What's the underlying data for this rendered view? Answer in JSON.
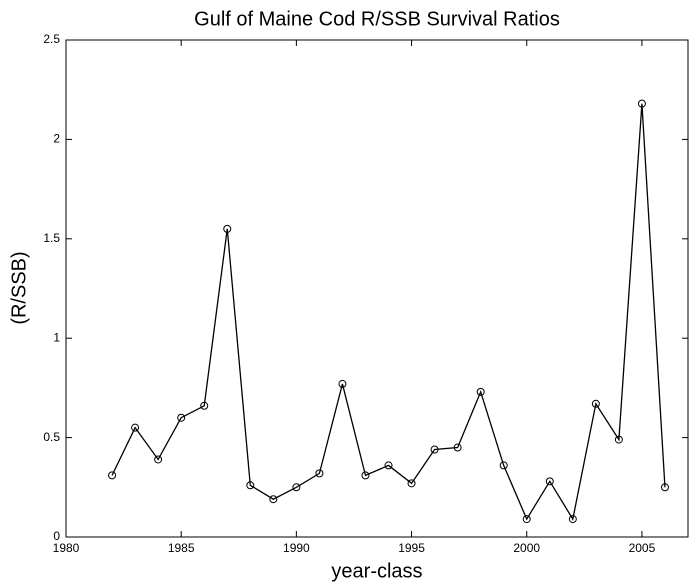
{
  "chart_data": {
    "type": "line",
    "title": "Gulf of Maine Cod R/SSB Survival Ratios",
    "x_label": "year-class",
    "y_label": "(R/SSB)",
    "x": [
      1982,
      1983,
      1984,
      1985,
      1986,
      1987,
      1988,
      1989,
      1990,
      1991,
      1992,
      1993,
      1994,
      1995,
      1996,
      1997,
      1998,
      1999,
      2000,
      2001,
      2002,
      2003,
      2004,
      2005,
      2006
    ],
    "series": [
      {
        "color": "#000000",
        "values": [
          0.31,
          0.55,
          0.39,
          0.6,
          0.66,
          1.55,
          0.26,
          0.19,
          0.25,
          0.32,
          0.77,
          0.31,
          0.36,
          0.27,
          0.44,
          0.45,
          0.73,
          0.36,
          0.09,
          0.28,
          0.09,
          0.67,
          0.49,
          2.18,
          0.25
        ]
      }
    ],
    "xlim": [
      1980,
      2007
    ],
    "xticks": [
      1980,
      1985,
      1990,
      1995,
      2000,
      2005
    ],
    "ylim": [
      0,
      2.5
    ],
    "yticks": [
      0,
      0.5,
      1,
      1.5,
      2,
      2.5
    ],
    "grid": false
  }
}
